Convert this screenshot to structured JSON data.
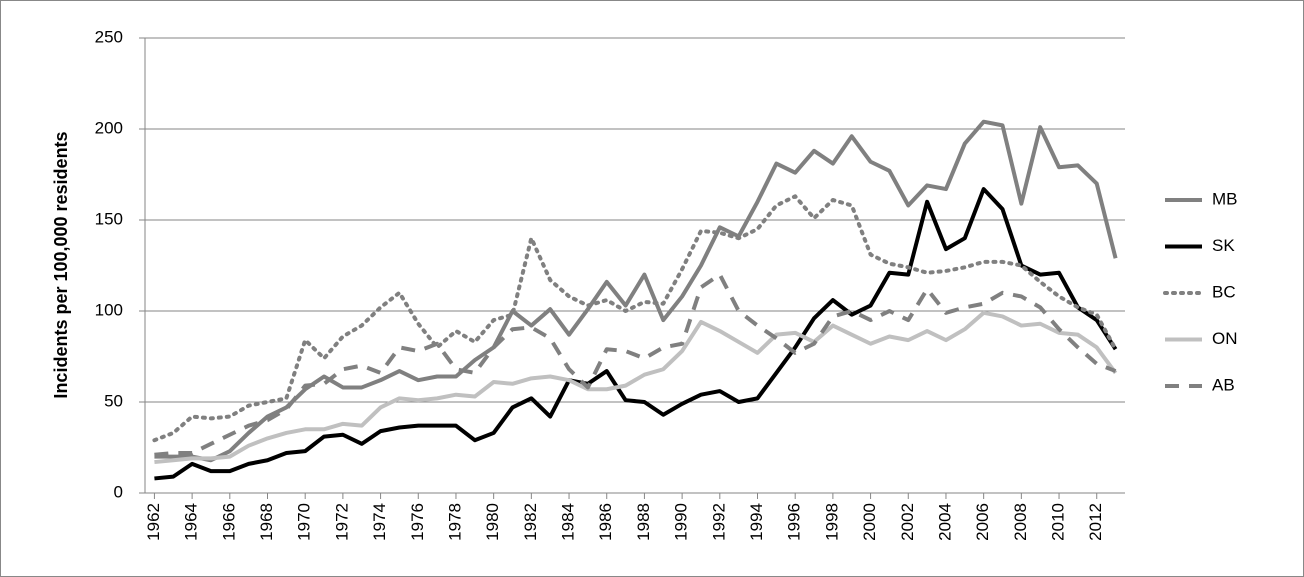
{
  "chart_data": {
    "type": "line",
    "y_label": "Incidents per 100,000 residents",
    "x": [
      1962,
      1963,
      1964,
      1965,
      1966,
      1967,
      1968,
      1969,
      1970,
      1971,
      1972,
      1973,
      1974,
      1975,
      1976,
      1977,
      1978,
      1979,
      1980,
      1981,
      1982,
      1983,
      1984,
      1985,
      1986,
      1987,
      1988,
      1989,
      1990,
      1991,
      1992,
      1993,
      1994,
      1995,
      1996,
      1997,
      1998,
      1999,
      2000,
      2001,
      2002,
      2003,
      2004,
      2005,
      2006,
      2007,
      2008,
      2009,
      2010,
      2011,
      2012,
      2013
    ],
    "xlim": [
      1961.5,
      2013.5
    ],
    "xticks": [
      1962,
      1964,
      1966,
      1968,
      1970,
      1972,
      1974,
      1976,
      1978,
      1980,
      1982,
      1984,
      1986,
      1988,
      1990,
      1992,
      1994,
      1996,
      1998,
      2000,
      2002,
      2004,
      2006,
      2008,
      2010,
      2012
    ],
    "ylim": [
      0,
      250
    ],
    "yticks": [
      0,
      50,
      100,
      150,
      200,
      250
    ],
    "grid": true,
    "legend": "right",
    "series": [
      {
        "name": "MB",
        "color": "#808080",
        "dash": "solid",
        "values": [
          20,
          20,
          20,
          18,
          23,
          33,
          42,
          47,
          57,
          64,
          58,
          58,
          62,
          67,
          62,
          64,
          64,
          73,
          80,
          100,
          92,
          101,
          87,
          101,
          116,
          103,
          120,
          95,
          108,
          125,
          146,
          141,
          160,
          181,
          176,
          188,
          181,
          196,
          182,
          177,
          158,
          169,
          167,
          192,
          204,
          202,
          159,
          201,
          179,
          180,
          170,
          129
        ]
      },
      {
        "name": "SK",
        "color": "#000000",
        "dash": "solid",
        "values": [
          8,
          9,
          16,
          12,
          12,
          16,
          18,
          22,
          23,
          31,
          32,
          27,
          34,
          36,
          37,
          37,
          37,
          29,
          33,
          47,
          52,
          42,
          62,
          60,
          67,
          51,
          50,
          43,
          49,
          54,
          56,
          50,
          52,
          66,
          80,
          96,
          106,
          98,
          103,
          121,
          120,
          160,
          134,
          140,
          167,
          156,
          125,
          120,
          121,
          102,
          95,
          79
        ]
      },
      {
        "name": "BC",
        "color": "#808080",
        "dash": "dotted",
        "values": [
          29,
          33,
          42,
          41,
          42,
          48,
          50,
          52,
          84,
          74,
          86,
          92,
          102,
          110,
          93,
          80,
          89,
          83,
          95,
          98,
          140,
          117,
          108,
          103,
          106,
          100,
          105,
          104,
          123,
          144,
          143,
          140,
          145,
          158,
          163,
          151,
          161,
          158,
          131,
          126,
          124,
          121,
          122,
          124,
          127,
          127,
          125,
          116,
          108,
          102,
          98,
          79
        ]
      },
      {
        "name": "ON",
        "color": "#c0c0c0",
        "dash": "solid",
        "values": [
          17,
          18,
          19,
          19,
          20,
          26,
          30,
          33,
          35,
          35,
          38,
          37,
          47,
          52,
          51,
          52,
          54,
          53,
          61,
          60,
          63,
          64,
          62,
          57,
          57,
          59,
          65,
          68,
          78,
          94,
          89,
          83,
          77,
          87,
          88,
          83,
          92,
          87,
          82,
          86,
          84,
          89,
          84,
          90,
          99,
          97,
          92,
          93,
          88,
          87,
          80,
          66
        ]
      },
      {
        "name": "AB",
        "color": "#808080",
        "dash": "dashed",
        "values": [
          21,
          22,
          22,
          27,
          32,
          37,
          40,
          46,
          59,
          60,
          68,
          70,
          66,
          80,
          78,
          82,
          68,
          66,
          80,
          90,
          91,
          85,
          68,
          58,
          79,
          78,
          74,
          80,
          82,
          113,
          120,
          100,
          92,
          85,
          77,
          82,
          97,
          100,
          95,
          100,
          95,
          112,
          99,
          102,
          104,
          110,
          108,
          102,
          90,
          80,
          71,
          67
        ]
      }
    ]
  }
}
